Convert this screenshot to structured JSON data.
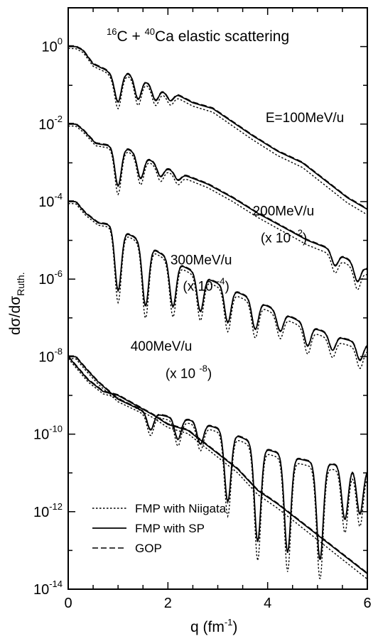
{
  "chart_data": {
    "type": "line",
    "title": {
      "pre_sup": "16",
      "a": "C + ",
      "sup": "40",
      "b": "Ca elastic scattering"
    },
    "xlabel": {
      "main": "q (fm",
      "sup": "-1",
      "close": ")"
    },
    "ylabel": {
      "main": "dσ/dσ",
      "sub": "Ruth."
    },
    "xlim": [
      0,
      6
    ],
    "ylim_exp": [
      -14,
      1
    ],
    "yscale": "log",
    "x_ticks": [
      {
        "value": 0,
        "label": "0"
      },
      {
        "value": 2,
        "label": "2"
      },
      {
        "value": 4,
        "label": "4"
      },
      {
        "value": 6,
        "label": "6"
      }
    ],
    "y_ticks": [
      {
        "exp": 0,
        "base": "10",
        "sup": "0"
      },
      {
        "exp": -2,
        "base": "10",
        "sup": "-2"
      },
      {
        "exp": -4,
        "base": "10",
        "sup": "-4"
      },
      {
        "exp": -6,
        "base": "10",
        "sup": "-6"
      },
      {
        "exp": -8,
        "base": "10",
        "sup": "-8"
      },
      {
        "exp": -10,
        "base": "10",
        "sup": "-10"
      },
      {
        "exp": -12,
        "base": "10",
        "sup": "-12"
      },
      {
        "exp": -14,
        "base": "10",
        "sup": "-14"
      }
    ],
    "series_labels": [
      {
        "id": "e100",
        "text": "E=100MeV/u",
        "scale_text": "",
        "scale_sup": "",
        "q": 3.96,
        "exp": -1.95
      },
      {
        "id": "e200",
        "text": "200MeV/u",
        "scale_text": "(x 10",
        "scale_sup": "-2",
        "q": 3.7,
        "exp": -4.36,
        "scale_q": 3.86,
        "scale_exp": -5.05
      },
      {
        "id": "e300",
        "text": "300MeV/u",
        "scale_text": "(x 10",
        "scale_sup": "-4",
        "q": 2.05,
        "exp": -5.62,
        "scale_q": 2.3,
        "scale_exp": -6.3
      },
      {
        "id": "e400",
        "text": "400MeV/u",
        "scale_text": "(x 10",
        "scale_sup": "-8",
        "q": 1.25,
        "exp": -7.85,
        "scale_q": 1.95,
        "scale_exp": -8.55
      }
    ],
    "legend": {
      "position": "bottom-left",
      "items": [
        {
          "label": "FMP with Niigata",
          "style": "dotted"
        },
        {
          "label": "FMP with SP",
          "style": "solid"
        },
        {
          "label": "GOP",
          "style": "dashed"
        }
      ]
    },
    "series": [
      {
        "id": "e100",
        "offset_exp": 0,
        "minima": [
          {
            "q": 1.0,
            "depth": 0.7
          },
          {
            "q": 1.4,
            "depth": 0.55
          },
          {
            "q": 1.75,
            "depth": 0.35
          },
          {
            "q": 2.05,
            "depth": 0.2
          }
        ],
        "base": [
          [
            0.0,
            0.0
          ],
          [
            0.15,
            0.0
          ],
          [
            0.3,
            -0.1
          ],
          [
            0.5,
            -0.45
          ],
          [
            0.75,
            -0.6
          ],
          [
            0.9,
            -0.75
          ],
          [
            1.2,
            -0.7
          ],
          [
            1.55,
            -0.9
          ],
          [
            1.9,
            -1.15
          ],
          [
            2.2,
            -1.25
          ],
          [
            2.5,
            -1.45
          ],
          [
            2.9,
            -1.6
          ],
          [
            3.3,
            -1.95
          ],
          [
            3.7,
            -2.3
          ],
          [
            4.2,
            -2.7
          ],
          [
            4.7,
            -3.0
          ],
          [
            5.2,
            -3.5
          ],
          [
            5.6,
            -3.9
          ],
          [
            6.0,
            -4.2
          ]
        ]
      },
      {
        "id": "e200",
        "offset_exp": -2,
        "minima": [
          {
            "q": 1.0,
            "depth": 1.0
          },
          {
            "q": 1.45,
            "depth": 0.6
          },
          {
            "q": 1.85,
            "depth": 0.3
          },
          {
            "q": 2.2,
            "depth": 0.2
          },
          {
            "q": 5.35,
            "depth": 0.35
          },
          {
            "q": 5.8,
            "depth": 0.45
          }
        ],
        "base": [
          [
            0.0,
            -2.0
          ],
          [
            0.15,
            -2.0
          ],
          [
            0.3,
            -2.15
          ],
          [
            0.55,
            -2.5
          ],
          [
            0.8,
            -2.55
          ],
          [
            1.2,
            -2.65
          ],
          [
            1.6,
            -2.9
          ],
          [
            2.0,
            -3.15
          ],
          [
            2.4,
            -3.35
          ],
          [
            2.8,
            -3.55
          ],
          [
            3.3,
            -3.9
          ],
          [
            3.8,
            -4.3
          ],
          [
            4.3,
            -4.65
          ],
          [
            4.8,
            -5.0
          ],
          [
            5.2,
            -5.2
          ],
          [
            5.55,
            -5.45
          ],
          [
            6.0,
            -5.75
          ]
        ]
      },
      {
        "id": "e300",
        "offset_exp": -4,
        "minima": [
          {
            "q": 1.0,
            "depth": 1.6
          },
          {
            "q": 1.55,
            "depth": 1.6
          },
          {
            "q": 2.1,
            "depth": 1.2
          },
          {
            "q": 2.65,
            "depth": 0.95
          },
          {
            "q": 3.2,
            "depth": 0.9
          },
          {
            "q": 3.75,
            "depth": 0.75
          },
          {
            "q": 4.25,
            "depth": 0.5
          },
          {
            "q": 4.8,
            "depth": 0.55
          },
          {
            "q": 5.3,
            "depth": 0.4
          },
          {
            "q": 5.85,
            "depth": 0.45
          }
        ],
        "base": [
          [
            0.0,
            -4.0
          ],
          [
            0.15,
            -4.0
          ],
          [
            0.35,
            -4.3
          ],
          [
            0.6,
            -4.55
          ],
          [
            0.85,
            -4.6
          ],
          [
            1.3,
            -4.9
          ],
          [
            1.8,
            -5.3
          ],
          [
            2.35,
            -5.7
          ],
          [
            2.9,
            -6.05
          ],
          [
            3.5,
            -6.4
          ],
          [
            4.0,
            -6.7
          ],
          [
            4.5,
            -7.0
          ],
          [
            5.0,
            -7.3
          ],
          [
            5.55,
            -7.55
          ],
          [
            6.0,
            -7.7
          ]
        ]
      },
      {
        "id": "e400",
        "offset_exp": -8,
        "minima": [
          {
            "q": 1.65,
            "depth": 0.45
          },
          {
            "q": 2.2,
            "depth": 0.55
          },
          {
            "q": 2.65,
            "depth": 0.55
          },
          {
            "q": 3.2,
            "depth": 1.8
          },
          {
            "q": 3.8,
            "depth": 2.5
          },
          {
            "q": 4.4,
            "depth": 2.5
          },
          {
            "q": 5.05,
            "depth": 2.5
          },
          {
            "q": 5.55,
            "depth": 1.4
          },
          {
            "q": 5.85,
            "depth": 1.2
          }
        ],
        "base": [
          [
            0.0,
            -8.0
          ],
          [
            0.15,
            -8.0
          ],
          [
            0.35,
            -8.3
          ],
          [
            0.6,
            -8.65
          ],
          [
            1.0,
            -9.1
          ],
          [
            1.5,
            -9.4
          ],
          [
            2.0,
            -9.55
          ],
          [
            2.5,
            -9.65
          ],
          [
            3.0,
            -9.85
          ],
          [
            3.5,
            -10.1
          ],
          [
            4.0,
            -10.4
          ],
          [
            4.5,
            -10.6
          ],
          [
            5.0,
            -10.75
          ],
          [
            5.5,
            -10.8
          ],
          [
            6.0,
            -10.9
          ]
        ]
      },
      {
        "id": "e100x",
        "offset_exp": -10,
        "minima": [],
        "base": [
          [
            0.0,
            -8.0
          ],
          [
            0.4,
            -8.6
          ],
          [
            0.7,
            -8.9
          ],
          [
            1.0,
            -9.0
          ],
          [
            1.35,
            -9.25
          ],
          [
            1.7,
            -9.5
          ],
          [
            2.0,
            -9.75
          ],
          [
            2.4,
            -9.9
          ],
          [
            2.7,
            -10.2
          ],
          [
            3.0,
            -10.5
          ],
          [
            3.4,
            -10.9
          ],
          [
            3.8,
            -11.45
          ],
          [
            4.2,
            -11.8
          ],
          [
            4.6,
            -12.2
          ],
          [
            5.0,
            -12.6
          ],
          [
            5.4,
            -13.0
          ],
          [
            5.8,
            -13.4
          ],
          [
            6.0,
            -13.6
          ]
        ]
      }
    ]
  }
}
